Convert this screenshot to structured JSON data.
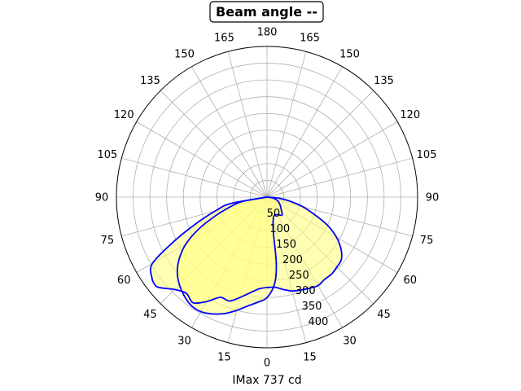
{
  "chart_data": {
    "type": "polar",
    "title": "Beam angle --",
    "xlabel": "IMax 737 cd",
    "angle_tick_labels": [
      "0",
      "15",
      "30",
      "45",
      "60",
      "75",
      "90",
      "105",
      "120",
      "135",
      "150",
      "165",
      "180",
      "165",
      "150",
      "135",
      "120",
      "105",
      "90",
      "75",
      "60",
      "45",
      "30",
      "15"
    ],
    "radial_ticks": [
      50,
      100,
      150,
      200,
      250,
      300,
      350,
      400
    ],
    "rlim": [
      0,
      450
    ],
    "grid": true,
    "colors": {
      "line": "#0000ff",
      "fill": "#ffff80",
      "grid": "#b0b0b0"
    },
    "series": [
      {
        "points": [
          {
            "angle": -90,
            "value": 0
          },
          {
            "angle": -80,
            "value": 110
          },
          {
            "angle": -75,
            "value": 160
          },
          {
            "angle": -70,
            "value": 220
          },
          {
            "angle": -65,
            "value": 300
          },
          {
            "angle": -60,
            "value": 395
          },
          {
            "angle": -55,
            "value": 420
          },
          {
            "angle": -52,
            "value": 425
          },
          {
            "angle": -50,
            "value": 420
          },
          {
            "angle": -45,
            "value": 390
          },
          {
            "angle": -40,
            "value": 375
          },
          {
            "angle": -35,
            "value": 385
          },
          {
            "angle": -30,
            "value": 360
          },
          {
            "angle": -25,
            "value": 330
          },
          {
            "angle": -20,
            "value": 330
          },
          {
            "angle": -15,
            "value": 310
          },
          {
            "angle": -10,
            "value": 290
          },
          {
            "angle": -5,
            "value": 275
          },
          {
            "angle": 0,
            "value": 270
          },
          {
            "angle": 5,
            "value": 270
          },
          {
            "angle": 10,
            "value": 280
          },
          {
            "angle": 15,
            "value": 290
          },
          {
            "angle": 20,
            "value": 295
          },
          {
            "angle": 25,
            "value": 300
          },
          {
            "angle": 30,
            "value": 305
          },
          {
            "angle": 35,
            "value": 300
          },
          {
            "angle": 40,
            "value": 300
          },
          {
            "angle": 45,
            "value": 295
          },
          {
            "angle": 50,
            "value": 290
          },
          {
            "angle": 55,
            "value": 270
          },
          {
            "angle": 60,
            "value": 240
          },
          {
            "angle": 65,
            "value": 200
          },
          {
            "angle": 70,
            "value": 150
          },
          {
            "angle": 75,
            "value": 110
          },
          {
            "angle": 80,
            "value": 70
          },
          {
            "angle": 85,
            "value": 35
          },
          {
            "angle": 90,
            "value": 0
          }
        ]
      },
      {
        "points": [
          {
            "angle": -90,
            "value": 0
          },
          {
            "angle": -80,
            "value": 75
          },
          {
            "angle": -75,
            "value": 115
          },
          {
            "angle": -70,
            "value": 165
          },
          {
            "angle": -65,
            "value": 225
          },
          {
            "angle": -60,
            "value": 280
          },
          {
            "angle": -55,
            "value": 320
          },
          {
            "angle": -50,
            "value": 350
          },
          {
            "angle": -45,
            "value": 370
          },
          {
            "angle": -40,
            "value": 385
          },
          {
            "angle": -35,
            "value": 395
          },
          {
            "angle": -30,
            "value": 395
          },
          {
            "angle": -25,
            "value": 385
          },
          {
            "angle": -20,
            "value": 370
          },
          {
            "angle": -15,
            "value": 350
          },
          {
            "angle": -10,
            "value": 330
          },
          {
            "angle": -5,
            "value": 315
          },
          {
            "angle": 0,
            "value": 300
          },
          {
            "angle": 5,
            "value": 260
          },
          {
            "angle": 8,
            "value": 200
          },
          {
            "angle": 10,
            "value": 110
          },
          {
            "angle": 13,
            "value": 80
          },
          {
            "angle": 20,
            "value": 60
          },
          {
            "angle": 30,
            "value": 60
          },
          {
            "angle": 40,
            "value": 70
          },
          {
            "angle": 50,
            "value": 55
          },
          {
            "angle": 60,
            "value": 45
          },
          {
            "angle": 70,
            "value": 35
          },
          {
            "angle": 80,
            "value": 20
          },
          {
            "angle": 90,
            "value": 0
          }
        ]
      }
    ]
  }
}
